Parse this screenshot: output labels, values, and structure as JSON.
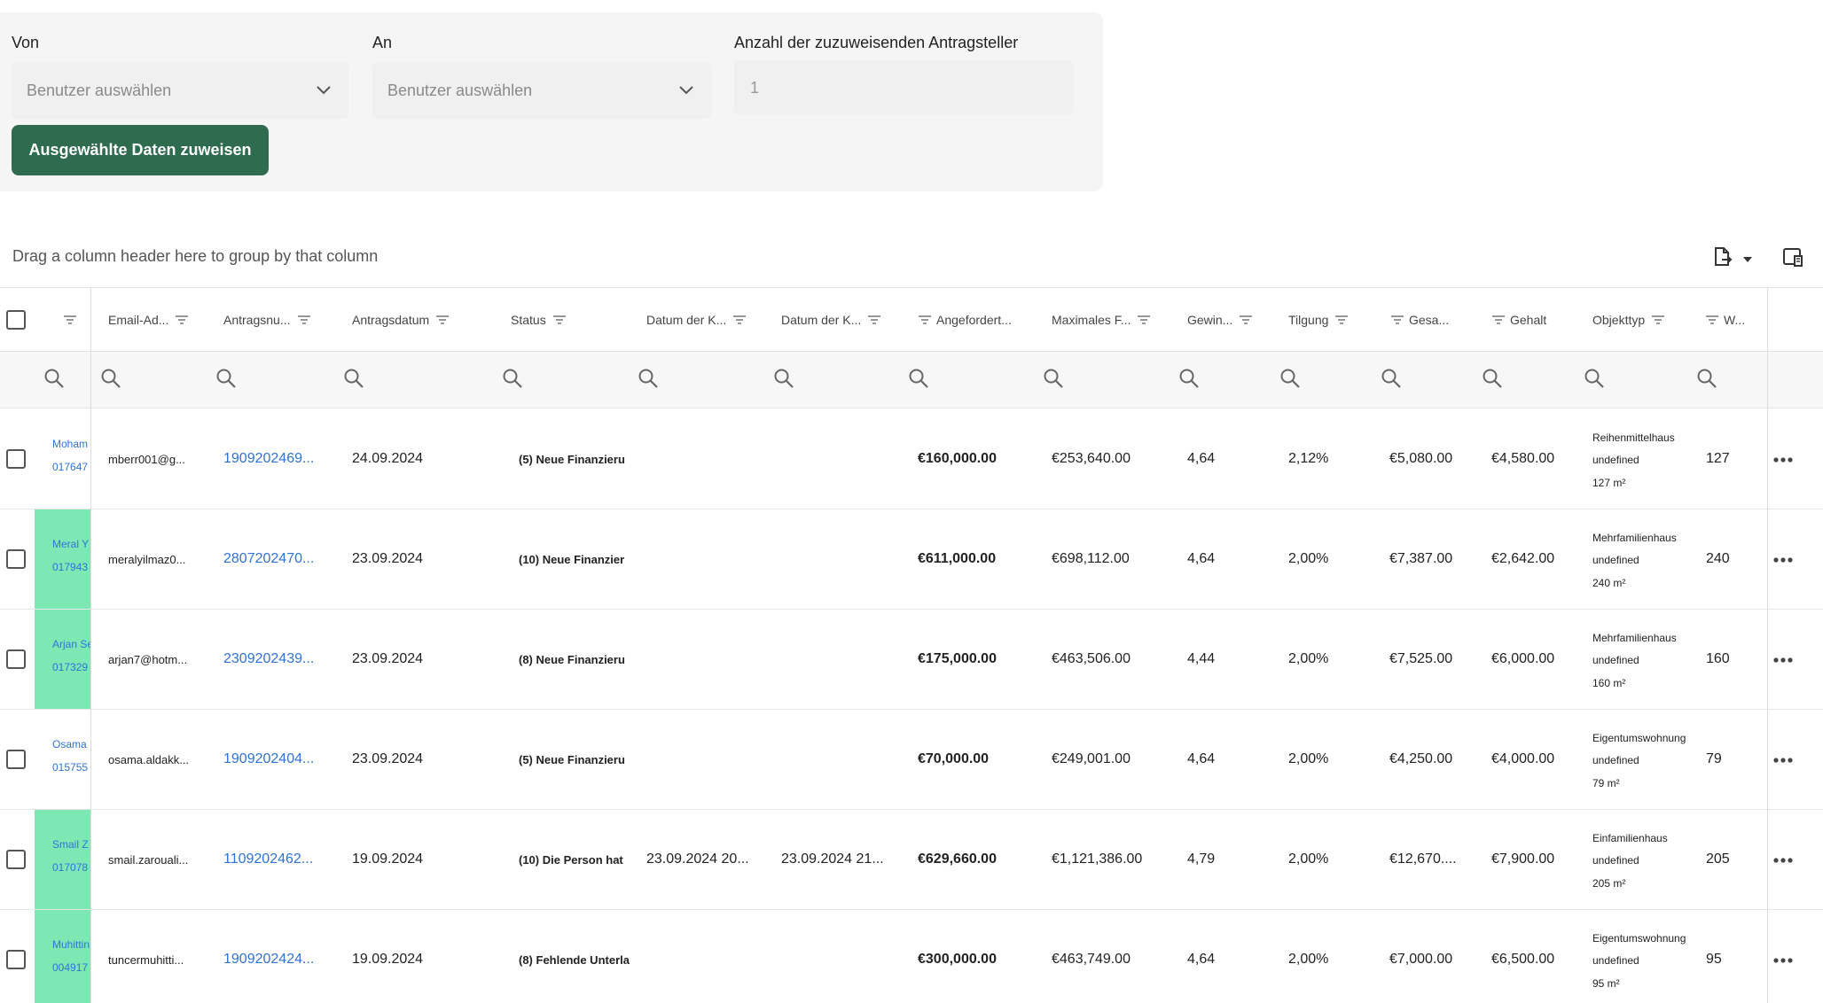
{
  "assign": {
    "from_label": "Von",
    "from_placeholder": "Benutzer auswählen",
    "to_label": "An",
    "to_placeholder": "Benutzer auswählen",
    "count_label": "Anzahl der zuzuweisenden Antragsteller",
    "count_value": "1",
    "submit_label": "Ausgewählte Daten zuweisen",
    "button_color": "#2f6b4f"
  },
  "group_hint": "Drag a column header here to group by that column",
  "toolbar": {
    "export_icon": "export-icon",
    "column_chooser_icon": "column-chooser-icon"
  },
  "columns": [
    "Email-Ad...",
    "Antragsnu...",
    "Antragsdatum",
    "Status",
    "Datum der K...",
    "Datum der K...",
    "Angefordert...",
    "Maximales F...",
    "Gewin...",
    "Tilgung",
    "Gesa...",
    "Gehalt",
    "Objekttyp",
    "W..."
  ],
  "rows": [
    {
      "name": "Moham",
      "phone": "017647",
      "highlight": false,
      "email": "mberr001@g...",
      "antragsnummer": "1909202469...",
      "datum": "24.09.2024",
      "status": "(5) Neue Finanzieru",
      "datum_k1": "",
      "datum_k2": "",
      "angefordert": "€160,000.00",
      "maximal": "€253,640.00",
      "gewinn": "4,64",
      "tilgung": "2,12%",
      "gesamt": "€5,080.00",
      "gehalt": "€4,580.00",
      "objekttyp": "Reihenmittelhaus",
      "obj_sub": "undefined",
      "obj_area": "127 m²",
      "w": "127"
    },
    {
      "name": "Meral Y",
      "phone": "017943",
      "highlight": true,
      "email": "meralyilmaz0...",
      "antragsnummer": "2807202470...",
      "datum": "23.09.2024",
      "status": "(10) Neue Finanzier",
      "datum_k1": "",
      "datum_k2": "",
      "angefordert": "€611,000.00",
      "maximal": "€698,112.00",
      "gewinn": "4,64",
      "tilgung": "2,00%",
      "gesamt": "€7,387.00",
      "gehalt": "€2,642.00",
      "objekttyp": "Mehrfamilienhaus",
      "obj_sub": "undefined",
      "obj_area": "240 m²",
      "w": "240"
    },
    {
      "name": "Arjan Se",
      "phone": "017329",
      "highlight": true,
      "email": "arjan7@hotm...",
      "antragsnummer": "2309202439...",
      "datum": "23.09.2024",
      "status": "(8) Neue Finanzieru",
      "datum_k1": "",
      "datum_k2": "",
      "angefordert": "€175,000.00",
      "maximal": "€463,506.00",
      "gewinn": "4,44",
      "tilgung": "2,00%",
      "gesamt": "€7,525.00",
      "gehalt": "€6,000.00",
      "objekttyp": "Mehrfamilienhaus",
      "obj_sub": "undefined",
      "obj_area": "160 m²",
      "w": "160"
    },
    {
      "name": "Osama",
      "phone": "015755",
      "highlight": false,
      "email": "osama.aldakk...",
      "antragsnummer": "1909202404...",
      "datum": "23.09.2024",
      "status": "(5) Neue Finanzieru",
      "datum_k1": "",
      "datum_k2": "",
      "angefordert": "€70,000.00",
      "maximal": "€249,001.00",
      "gewinn": "4,64",
      "tilgung": "2,00%",
      "gesamt": "€4,250.00",
      "gehalt": "€4,000.00",
      "objekttyp": "Eigentumswohnung",
      "obj_sub": "undefined",
      "obj_area": "79 m²",
      "w": "79"
    },
    {
      "name": "Smail Z",
      "phone": "017078",
      "highlight": true,
      "email": "smail.zarouali...",
      "antragsnummer": "1109202462...",
      "datum": "19.09.2024",
      "status": "(10) Die Person hat",
      "datum_k1": "23.09.2024 20...",
      "datum_k2": "23.09.2024 21...",
      "angefordert": "€629,660.00",
      "maximal": "€1,121,386.00",
      "gewinn": "4,79",
      "tilgung": "2,00%",
      "gesamt": "€12,670....",
      "gehalt": "€7,900.00",
      "objekttyp": "Einfamilienhaus",
      "obj_sub": "undefined",
      "obj_area": "205 m²",
      "w": "205"
    },
    {
      "name": "Muhittin",
      "phone": "004917",
      "highlight": true,
      "email": "tuncermuhitti...",
      "antragsnummer": "1909202424...",
      "datum": "19.09.2024",
      "status": "(8) Fehlende Unterla",
      "datum_k1": "",
      "datum_k2": "",
      "angefordert": "€300,000.00",
      "maximal": "€463,749.00",
      "gewinn": "4,64",
      "tilgung": "2,00%",
      "gesamt": "€7,000.00",
      "gehalt": "€6,500.00",
      "objekttyp": "Eigentumswohnung",
      "obj_sub": "undefined",
      "obj_area": "95 m²",
      "w": "95"
    }
  ]
}
